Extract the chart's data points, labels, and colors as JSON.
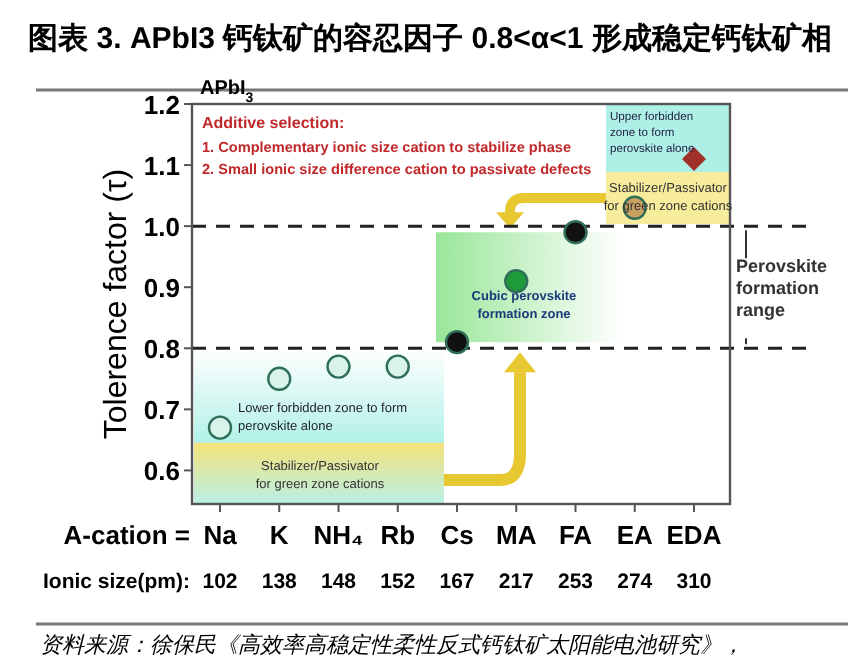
{
  "chart_data": {
    "type": "scatter",
    "title": "图表 3. APbI3 钙钛矿的容忍因子 0.8<α<1 形成稳定钙钛矿相",
    "xlabel": "A-cation =",
    "ylabel": "Tolerence factor (τ)",
    "categories": [
      "Na",
      "K",
      "NH₄",
      "Rb",
      "Cs",
      "MA",
      "FA",
      "EA",
      "EDA"
    ],
    "series": [
      {
        "color": "#d8f2ec",
        "marker": "circle",
        "values": [
          0.67,
          0.75,
          0.77,
          0.77,
          null,
          null,
          null,
          null,
          null
        ]
      },
      {
        "color": "#111111",
        "marker": "circle",
        "values": [
          null,
          null,
          null,
          null,
          0.81,
          null,
          0.99,
          null,
          null
        ]
      },
      {
        "color": "#1f9a3a",
        "marker": "circle",
        "values": [
          null,
          null,
          null,
          null,
          null,
          0.91,
          null,
          null,
          null
        ]
      },
      {
        "color": "#c8a060",
        "marker": "circle",
        "values": [
          null,
          null,
          null,
          null,
          null,
          null,
          null,
          1.03,
          null
        ]
      },
      {
        "color": "#a0302a",
        "marker": "diamond",
        "values": [
          null,
          null,
          null,
          null,
          null,
          null,
          null,
          null,
          1.11
        ]
      }
    ],
    "ylim": [
      0.545,
      1.2
    ],
    "yticks": [
      0.6,
      0.7,
      0.8,
      0.9,
      {
        "value": 1,
        "label": "1.0"
      },
      1.1,
      1.2
    ],
    "ref_lines": [
      {
        "axis": "y",
        "value": 1,
        "line_style": "dashed"
      },
      {
        "axis": "y",
        "value": 0.8,
        "line_style": "dashed"
      }
    ],
    "grid": false,
    "annotations": [
      "APbI$_{3}$",
      "Additive selection:",
      "1.  Complementary ionic size cation to stabilize phase",
      "2.  Small ionic size difference cation to passivate defects",
      "Upper forbidden zone to form perovskite alone",
      "Stabilizer/Passivator for green zone cations",
      "Cubic perovskite formation zone",
      "Lower forbidden zone to form perovskite alone",
      "Stabilizer/Passivator for green zone cations",
      "Perovskite formation range",
      "Ionic size(pm):",
      "102",
      "138",
      "148",
      "152",
      "167",
      "217",
      "253",
      "274",
      "310",
      "资料来源：徐保民《高效率高稳定性柔性反式钙钛矿太阳能电池研究》，"
    ]
  }
}
